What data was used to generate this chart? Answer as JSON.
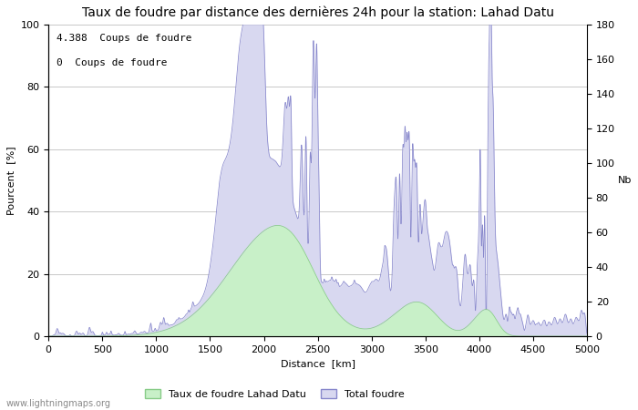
{
  "title": "Taux de foudre par distance des dernières 24h pour la station: Lahad Datu",
  "xlabel": "Distance  [km]",
  "ylabel_left": "Pourcent  [%]",
  "ylabel_right": "Nb",
  "annotation_line1": "4.388  Coups de foudre",
  "annotation_line2": "0  Coups de foudre",
  "xlim": [
    0,
    5000
  ],
  "ylim_left": [
    0,
    100
  ],
  "ylim_right": [
    0,
    180
  ],
  "xticks": [
    0,
    500,
    1000,
    1500,
    2000,
    2500,
    3000,
    3500,
    4000,
    4500,
    5000
  ],
  "yticks_left": [
    0,
    20,
    40,
    60,
    80,
    100
  ],
  "yticks_right": [
    0,
    20,
    40,
    60,
    80,
    100,
    120,
    140,
    160,
    180
  ],
  "legend_label1": "Taux de foudre Lahad Datu",
  "legend_label2": "Total foudre",
  "fill_color_blue": "#d8d8f0",
  "fill_color_green": "#c8f0c8",
  "line_color_blue": "#8888cc",
  "line_color_green": "#88cc88",
  "background_color": "#ffffff",
  "grid_color": "#c8c8c8",
  "watermark": "www.lightningmaps.org",
  "title_fontsize": 10,
  "label_fontsize": 8,
  "tick_fontsize": 8,
  "annot_fontsize": 8
}
